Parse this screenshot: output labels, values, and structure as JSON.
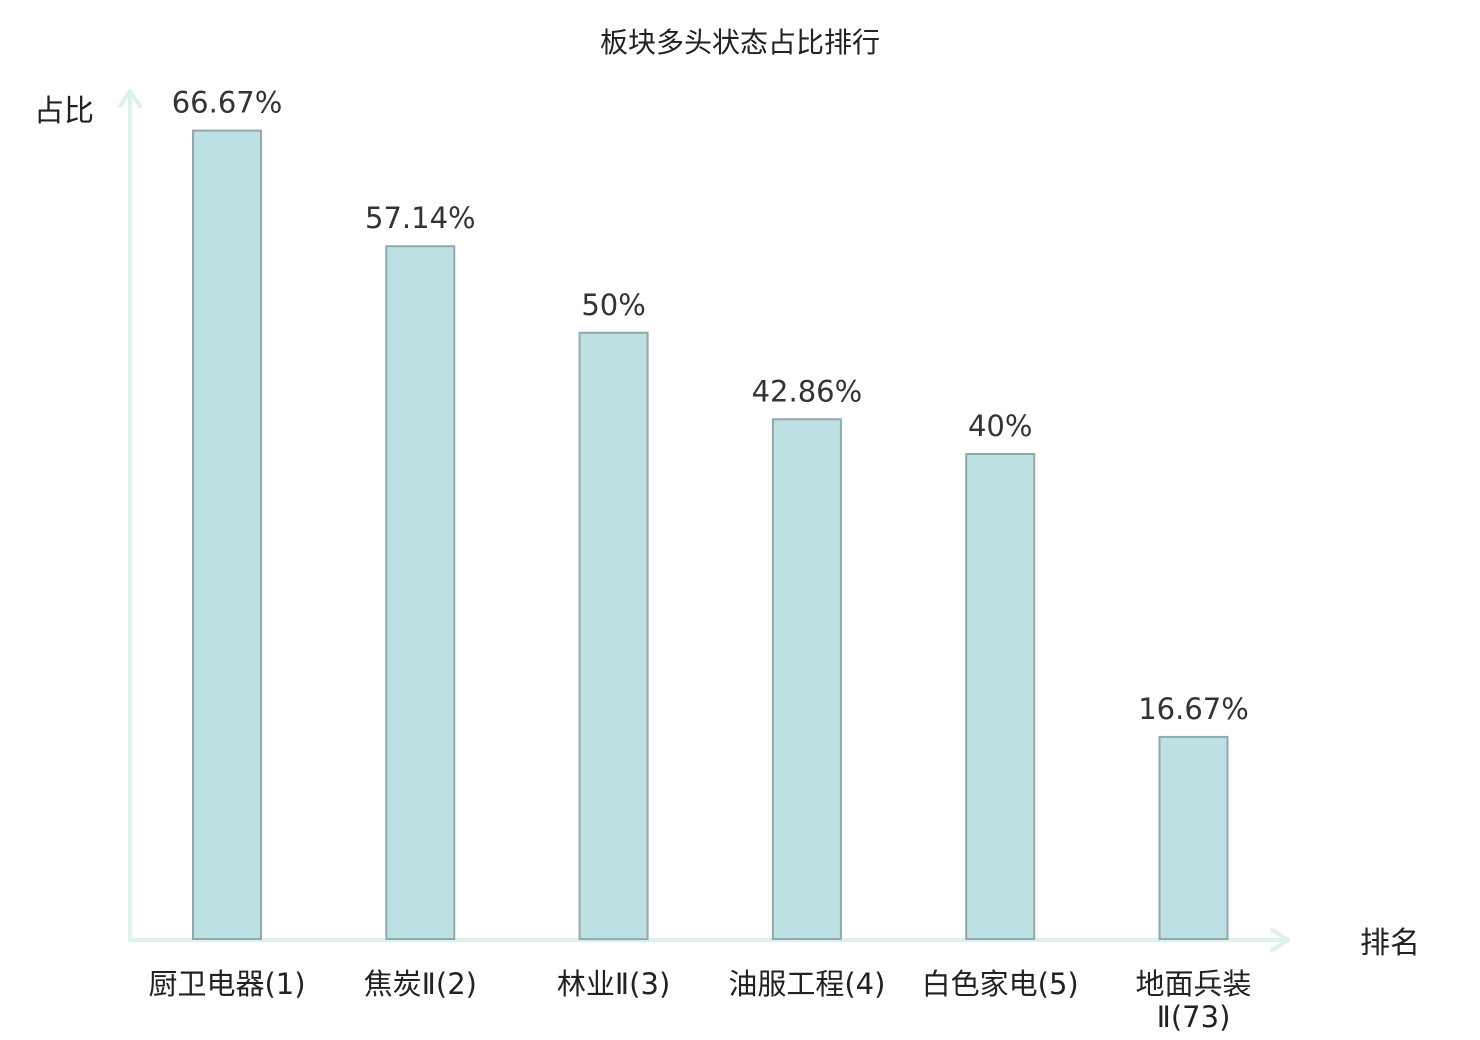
{
  "chart_data": {
    "type": "bar",
    "title": "板块多头状态占比排行",
    "ylabel": "占比",
    "xlabel": "排名",
    "ylim": [
      0,
      100
    ],
    "grid": false,
    "categories": [
      {
        "lines": [
          "厨卫电器(1)"
        ],
        "highlight": false
      },
      {
        "lines": [
          "焦炭Ⅱ(2)"
        ],
        "highlight": false
      },
      {
        "lines": [
          "林业Ⅱ(3)"
        ],
        "highlight": false
      },
      {
        "lines": [
          "油服工程(4)"
        ],
        "highlight": false
      },
      {
        "lines": [
          "白色家电(5)"
        ],
        "highlight": false
      },
      {
        "lines": [
          "地面兵装",
          "Ⅱ(73)"
        ],
        "highlight": true
      }
    ],
    "values": [
      66.67,
      57.14,
      50,
      42.86,
      40,
      16.67
    ],
    "value_labels": [
      "66.67%",
      "57.14%",
      "50%",
      "42.86%",
      "40%",
      "16.67%"
    ]
  },
  "colors": {
    "bar_fill": "#bde0e3",
    "bar_stroke": "#8fa9ad",
    "axis": "#ddf1ee",
    "highlight_text": "#e8141c",
    "text": "#222222"
  }
}
